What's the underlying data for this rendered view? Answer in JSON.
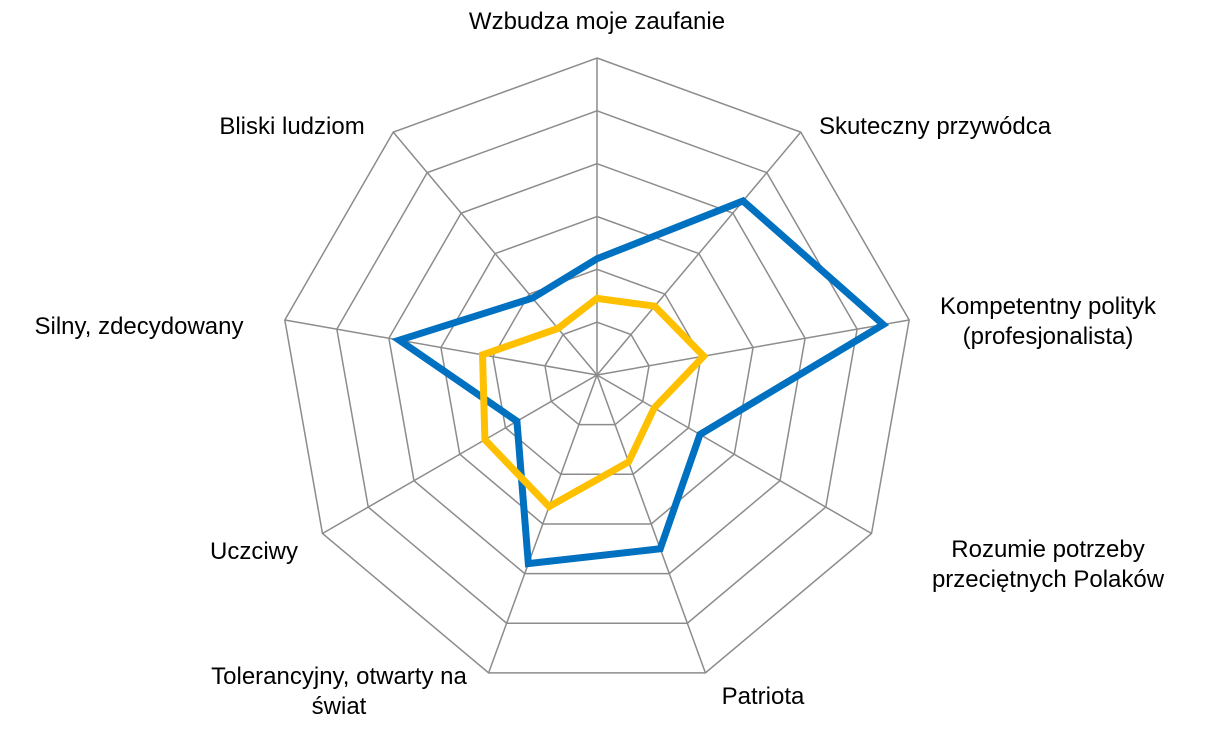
{
  "chart_data": {
    "type": "radar",
    "categories": [
      "Wzbudza moje zaufanie",
      "Skuteczny przywódca",
      "Kompetentny polityk (profesjonalista)",
      "Rozumie potrzeby przeciętnych Polaków",
      "Patriota",
      "Tolerancyjny, otwarty na świat",
      "Uczciwy",
      "Silny, zdecydowany",
      "Bliski ludziom"
    ],
    "series": [
      {
        "color": "#0070c0",
        "values": [
          22,
          43,
          55,
          22.5,
          35,
          38,
          17.5,
          38,
          19
        ]
      },
      {
        "color": "#ffc000",
        "values": [
          14.5,
          17,
          20.5,
          12.5,
          17.5,
          26.5,
          24.5,
          22,
          11.5
        ]
      }
    ],
    "ylim": [
      0,
      60
    ],
    "yticks": [
      10,
      20,
      30,
      40,
      50,
      60
    ],
    "grid": true
  }
}
